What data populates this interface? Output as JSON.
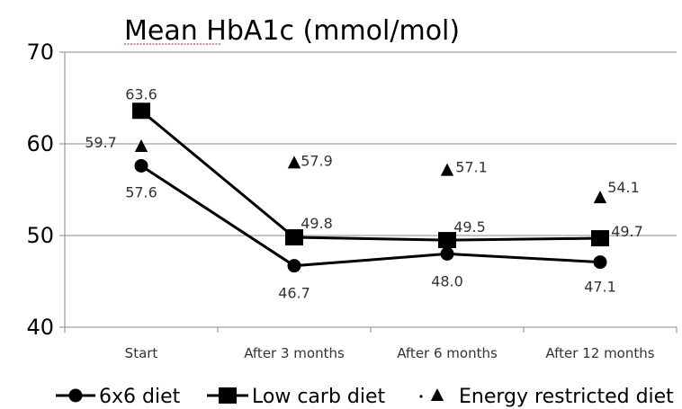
{
  "chart_data": {
    "type": "line",
    "title": "Mean HbA1c (mmol/mol)",
    "categories": [
      "Start",
      "After 3 months",
      "After 6 months",
      "After 12 months"
    ],
    "ylim": [
      40,
      70
    ],
    "yticks": [
      40,
      50,
      60,
      70
    ],
    "grid": true,
    "legend_position": "bottom",
    "series": [
      {
        "name": "6x6 diet",
        "marker": "circle",
        "line": true,
        "values": [
          57.6,
          46.7,
          48.0,
          47.1
        ],
        "labels": [
          "57.6",
          "46.7",
          "48.0",
          "47.1"
        ],
        "color": "#000000"
      },
      {
        "name": "Low carb diet",
        "marker": "square",
        "line": true,
        "values": [
          63.6,
          49.8,
          49.5,
          49.7
        ],
        "labels": [
          "63.6",
          "49.8",
          "49.5",
          "49.7"
        ],
        "color": "#000000"
      },
      {
        "name": "Energy restricted diet",
        "marker": "triangle",
        "line": false,
        "values": [
          59.7,
          57.9,
          57.1,
          54.1
        ],
        "labels": [
          "59.7",
          "57.9",
          "57.1",
          "54.1"
        ],
        "color": "#000000"
      }
    ]
  }
}
